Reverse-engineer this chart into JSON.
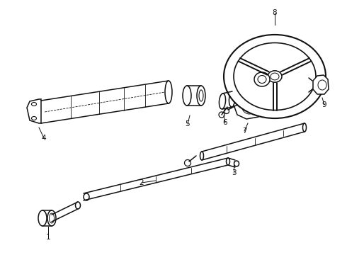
{
  "background_color": "#ffffff",
  "line_color": "#111111",
  "line_width": 1.1,
  "fig_width": 4.9,
  "fig_height": 3.6,
  "dpi": 100,
  "label_fontsize": 7.5
}
